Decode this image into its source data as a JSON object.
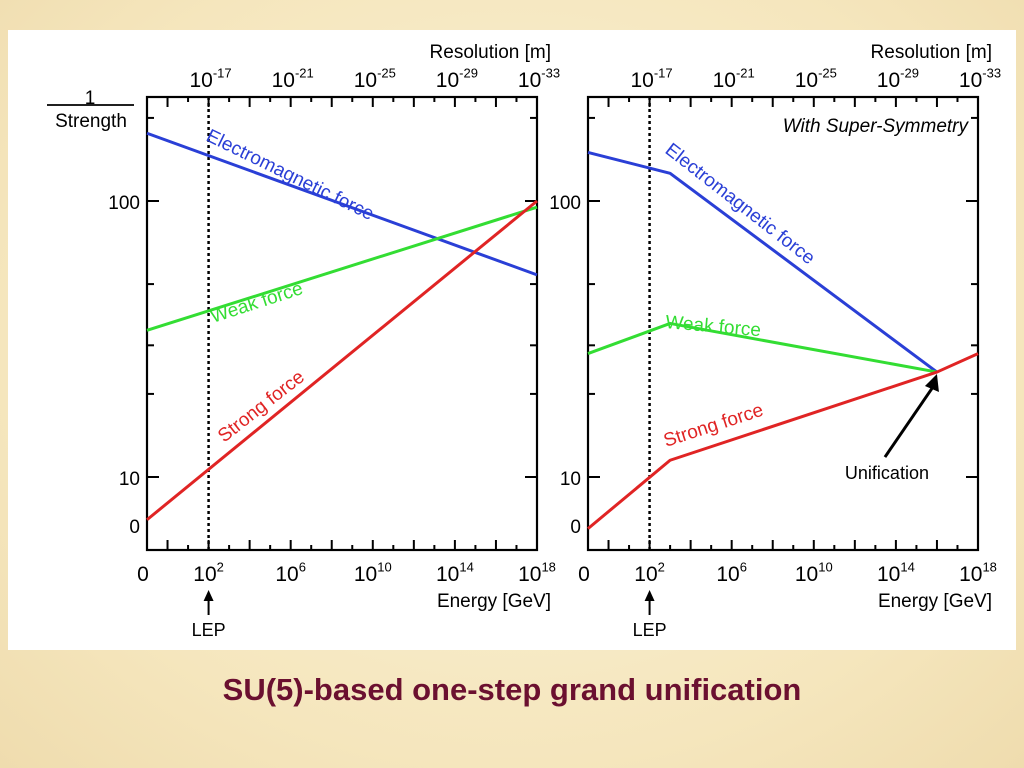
{
  "colors": {
    "electromagnetic": "#2a3fd6",
    "weak": "#33dd33",
    "strong": "#e02424",
    "axis": "#000000",
    "caption": "#6b1030"
  },
  "caption": "SU(5)-based one-step grand unification",
  "chart_data": [
    {
      "type": "line",
      "panel": "left",
      "title": "",
      "top_axis": {
        "label": "Resolution [m]",
        "tick_labels": [
          {
            "base": "10",
            "exp": "-17"
          },
          {
            "base": "10",
            "exp": "-21"
          },
          {
            "base": "10",
            "exp": "-25"
          },
          {
            "base": "10",
            "exp": "-29"
          },
          {
            "base": "10",
            "exp": "-33"
          }
        ]
      },
      "x_axis": {
        "label": "Energy [GeV]",
        "scale": "log10",
        "range_log10": [
          -1,
          18
        ],
        "tick_labels": [
          {
            "value": -1,
            "base": "0",
            "exp": ""
          },
          {
            "value": 2,
            "base": "10",
            "exp": "2"
          },
          {
            "value": 6,
            "base": "10",
            "exp": "6"
          },
          {
            "value": 10,
            "base": "10",
            "exp": "10"
          },
          {
            "value": 14,
            "base": "10",
            "exp": "14"
          },
          {
            "value": 18,
            "base": "10",
            "exp": "18"
          }
        ]
      },
      "y_axis": {
        "label_top": "1",
        "label_bottom": "Strength",
        "scale": "log",
        "tick_labels": [
          {
            "value": 0,
            "label": "0"
          },
          {
            "value": 10,
            "label": "10"
          },
          {
            "value": 100,
            "label": "100"
          }
        ]
      },
      "marker": {
        "label": "LEP",
        "x_log10": 2,
        "style": "dotted"
      },
      "series": [
        {
          "name": "Electromagnetic force",
          "color_key": "electromagnetic",
          "points": [
            [
              -1,
              176
            ],
            [
              18,
              54
            ]
          ]
        },
        {
          "name": "Weak force",
          "color_key": "weak",
          "points": [
            [
              -1,
              34
            ],
            [
              18,
              95
            ]
          ]
        },
        {
          "name": "Strong force",
          "color_key": "strong",
          "points": [
            [
              -1,
              7
            ],
            [
              18,
              100
            ]
          ]
        }
      ]
    },
    {
      "type": "line",
      "panel": "right",
      "title": "With Super-Symmetry",
      "top_axis": {
        "label": "Resolution [m]",
        "tick_labels": [
          {
            "base": "10",
            "exp": "-17"
          },
          {
            "base": "10",
            "exp": "-21"
          },
          {
            "base": "10",
            "exp": "-25"
          },
          {
            "base": "10",
            "exp": "-29"
          },
          {
            "base": "10",
            "exp": "-33"
          }
        ]
      },
      "x_axis": {
        "label": "Energy [GeV]",
        "scale": "log10",
        "range_log10": [
          -1,
          18
        ],
        "tick_labels": [
          {
            "value": -1,
            "base": "0",
            "exp": ""
          },
          {
            "value": 2,
            "base": "10",
            "exp": "2"
          },
          {
            "value": 6,
            "base": "10",
            "exp": "6"
          },
          {
            "value": 10,
            "base": "10",
            "exp": "10"
          },
          {
            "value": 14,
            "base": "10",
            "exp": "14"
          },
          {
            "value": 18,
            "base": "10",
            "exp": "18"
          }
        ]
      },
      "y_axis": {
        "scale": "log",
        "tick_labels": [
          {
            "value": 0,
            "label": "0"
          },
          {
            "value": 10,
            "label": "10"
          },
          {
            "value": 100,
            "label": "100"
          }
        ]
      },
      "marker": {
        "label": "LEP",
        "x_log10": 2,
        "style": "dotted"
      },
      "annotation": {
        "text": "Unification",
        "x_log10": 16,
        "value": 24
      },
      "series": [
        {
          "name": "Electromagnetic force",
          "color_key": "electromagnetic",
          "points": [
            [
              -1,
              150
            ],
            [
              3,
              126
            ],
            [
              16,
              24
            ]
          ]
        },
        {
          "name": "Weak force",
          "color_key": "weak",
          "points": [
            [
              -1,
              28
            ],
            [
              3,
              36
            ],
            [
              16,
              24
            ]
          ]
        },
        {
          "name": "Strong force",
          "color_key": "strong",
          "points": [
            [
              -1,
              6.5
            ],
            [
              3,
              11.5
            ],
            [
              16,
              24
            ],
            [
              18,
              28
            ]
          ]
        }
      ]
    }
  ]
}
